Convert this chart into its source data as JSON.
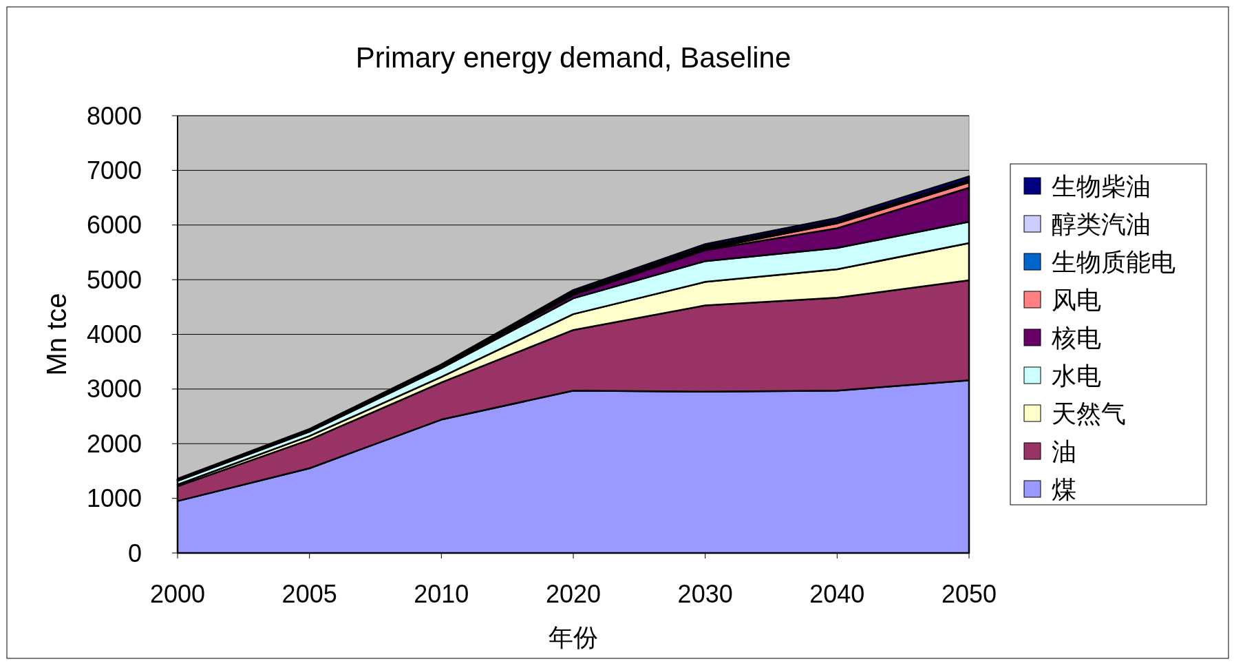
{
  "chart_data": {
    "type": "area",
    "stacked": true,
    "title": "Primary energy demand, Baseline",
    "xlabel": "年份",
    "ylabel": "Mn tce",
    "categories": [
      "2000",
      "2005",
      "2010",
      "2020",
      "2030",
      "2040",
      "2050"
    ],
    "ylim": [
      0,
      8000
    ],
    "yticks": [
      0,
      1000,
      2000,
      3000,
      4000,
      5000,
      6000,
      7000,
      8000
    ],
    "grid": "y",
    "legend": "right",
    "series": [
      {
        "name": "煤",
        "color": "#9999ff",
        "values": [
          950,
          1550,
          2440,
          2970,
          2950,
          2970,
          3160
        ]
      },
      {
        "name": "油",
        "color": "#993366",
        "values": [
          270,
          520,
          680,
          1110,
          1580,
          1700,
          1830
        ]
      },
      {
        "name": "天然气",
        "color": "#ffffcc",
        "values": [
          30,
          70,
          100,
          290,
          430,
          520,
          680
        ]
      },
      {
        "name": "水电",
        "color": "#ccffff",
        "values": [
          70,
          80,
          160,
          290,
          380,
          390,
          390
        ]
      },
      {
        "name": "核电",
        "color": "#660066",
        "values": [
          10,
          10,
          20,
          60,
          200,
          360,
          620
        ]
      },
      {
        "name": "风电",
        "color": "#ff8080",
        "values": [
          0,
          0,
          0,
          10,
          20,
          90,
          100
        ]
      },
      {
        "name": "生物质能电",
        "color": "#0066cc",
        "values": [
          10,
          10,
          10,
          20,
          30,
          30,
          30
        ]
      },
      {
        "name": "醇类汽油",
        "color": "#ccccff",
        "values": [
          0,
          0,
          10,
          20,
          20,
          20,
          20
        ]
      },
      {
        "name": "生物柴油",
        "color": "#000080",
        "values": [
          20,
          30,
          30,
          40,
          40,
          50,
          60
        ]
      }
    ]
  }
}
